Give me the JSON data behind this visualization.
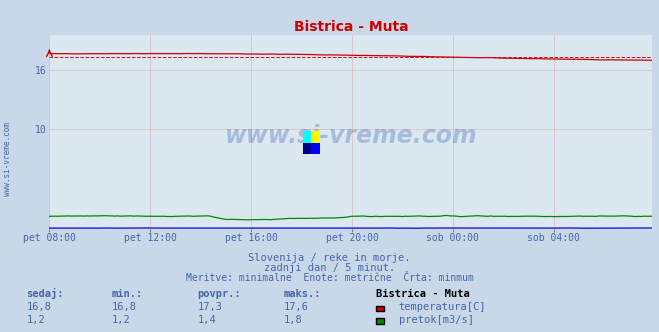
{
  "title": "Bistrica - Muta",
  "bg_color": "#c8d8e8",
  "plot_bg_color": "#dce8f0",
  "grid_color": "#cc8888",
  "temp_color": "#cc0000",
  "flow_color": "#008800",
  "height_color": "#0000cc",
  "ytick_values": [
    10,
    16
  ],
  "ytick_labels": [
    "10",
    "16"
  ],
  "ylim": [
    0,
    19.5
  ],
  "xlim": [
    0,
    287
  ],
  "xtick_labels": [
    "pet 08:00",
    "pet 12:00",
    "pet 16:00",
    "pet 20:00",
    "sob 00:00",
    "sob 04:00"
  ],
  "xtick_positions": [
    0,
    48,
    96,
    144,
    192,
    240
  ],
  "temp_avg": 17.3,
  "temp_min": 16.8,
  "temp_max": 17.6,
  "flow_avg": 1.4,
  "flow_min": 1.2,
  "flow_max": 1.8,
  "subtitle1": "Slovenija / reke in morje.",
  "subtitle2": "zadnji dan / 5 minut.",
  "subtitle3": "Meritve: minimalne  Enote: metrične  Črta: minmum",
  "label_color": "#4466aa",
  "watermark": "www.si-vreme.com",
  "watermark_color": "#3355aa",
  "legend_title": "Bistrica - Muta",
  "legend_temp": "temperatura[C]",
  "legend_flow": "pretok[m3/s]",
  "table_headers": [
    "sedaj:",
    "min.:",
    "povpr.:",
    "maks.:"
  ],
  "table_temp": [
    "16,8",
    "16,8",
    "17,3",
    "17,6"
  ],
  "table_flow": [
    "1,2",
    "1,2",
    "1,4",
    "1,8"
  ]
}
